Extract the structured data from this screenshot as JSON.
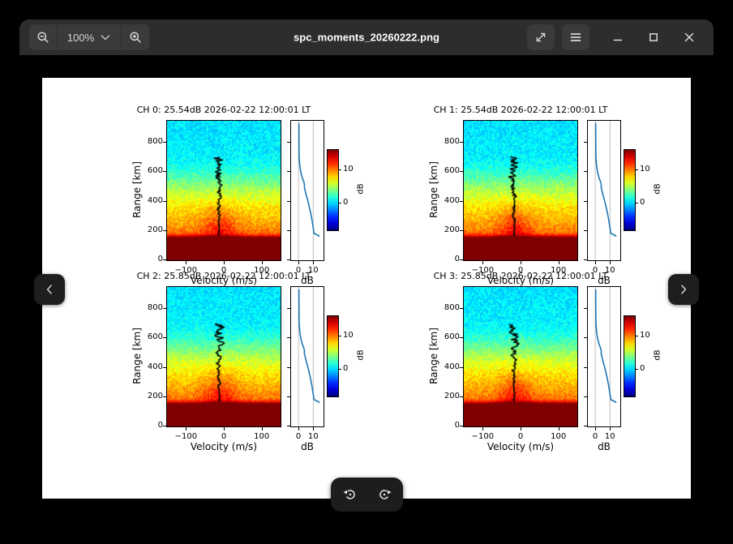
{
  "window": {
    "title": "spc_moments_20260222.png",
    "headerbar": {
      "zoom_level": "100%",
      "zoom_out_icon": "zoom-out-icon",
      "zoom_in_icon": "zoom-in-icon",
      "zoom_menu_chevron": "chevron-down-icon",
      "fullscreen_icon": "fullscreen-icon",
      "menu_icon": "hamburger-menu-icon",
      "minimize_icon": "minimize-icon",
      "maximize_icon": "maximize-icon",
      "close_icon": "close-icon"
    },
    "nav": {
      "previous_icon": "chevron-left-icon",
      "next_icon": "chevron-right-icon"
    },
    "bottom_bar": {
      "rotate_ccw_icon": "rotate-counterclockwise-icon",
      "rotate_cw_icon": "rotate-clockwise-icon"
    },
    "colors": {
      "headerbar": "#2d2d2d",
      "button": "#3a3a3a",
      "window_bg": "#000000",
      "figure_bg": "#ffffff",
      "profile_line": "#1f77b4"
    }
  },
  "chart_data": {
    "type": "heatmap",
    "description": "2x2 grid of radar Doppler spectra (velocity vs range, power in dB, jet colormap) with black Doppler-velocity trace, side SNR-profile line plot and colorbar per channel",
    "panels": [
      {
        "channel": "CH 0",
        "snr_db": 25.54,
        "timestamp": "2026-02-22 12:00:01 LT",
        "title": "CH 0: 25.54dB 2026-02-22 12:00:01 LT"
      },
      {
        "channel": "CH 1",
        "snr_db": 25.54,
        "timestamp": "2026-02-22 12:00:01 LT",
        "title": "CH 1: 25.54dB 2026-02-22 12:00:01 LT"
      },
      {
        "channel": "CH 2",
        "snr_db": 25.85,
        "timestamp": "2026-02-22 12:00:01 LT",
        "title": "CH 2: 25.85dB 2026-02-22 12:00:01 LT"
      },
      {
        "channel": "CH 3",
        "snr_db": 25.85,
        "timestamp": "2026-02-22 12:00:01 LT",
        "title": "CH 3: 25.85dB 2026-02-22 12:00:01 LT"
      }
    ],
    "shared": {
      "xlabel": "Velocity (m/s)",
      "ylabel": "Range [km]",
      "xlim": [
        -150,
        150
      ],
      "ylim": [
        0,
        950
      ],
      "xticks": [
        -100,
        0,
        100
      ],
      "yticks": [
        0,
        200,
        400,
        600,
        800
      ],
      "colormap": "jet",
      "colorbar_label": "dB",
      "colorbar_ticks": [
        0,
        10
      ],
      "colorbar_range": [
        -8,
        16
      ],
      "grid": false,
      "background_profile_km_db": [
        [
          0,
          16.8
        ],
        [
          148,
          16.7
        ],
        [
          158,
          15.6
        ],
        [
          170,
          13.8
        ],
        [
          176,
          11.5
        ],
        [
          190,
          10.3
        ],
        [
          230,
          9.5
        ],
        [
          300,
          8.4
        ],
        [
          360,
          7.6
        ],
        [
          420,
          6.4
        ],
        [
          480,
          5.2
        ],
        [
          540,
          3.6
        ],
        [
          600,
          2.2
        ],
        [
          660,
          1.2
        ],
        [
          730,
          0.7
        ],
        [
          950,
          0.35
        ]
      ],
      "velocity_trace": "black Doppler velocity profile near -10 m/s from ~170 km to ~700 km, wiggle amplitude grows with altitude",
      "db_panel": {
        "xlabel": "dB",
        "xticks": [
          0,
          10
        ],
        "xlim": [
          -5,
          17
        ],
        "snr_profile_db_km": [
          [
            0.3,
            935
          ],
          [
            0.4,
            760
          ],
          [
            0.5,
            700
          ],
          [
            0.9,
            645
          ],
          [
            1.6,
            600
          ],
          [
            2.6,
            560
          ],
          [
            3.6,
            535
          ],
          [
            4.1,
            515
          ],
          [
            4.0,
            498
          ],
          [
            4.3,
            485
          ],
          [
            5.0,
            455
          ],
          [
            5.8,
            425
          ],
          [
            6.6,
            395
          ],
          [
            7.3,
            365
          ],
          [
            8.0,
            335
          ],
          [
            8.6,
            305
          ],
          [
            9.2,
            272
          ],
          [
            9.7,
            240
          ],
          [
            10.1,
            215
          ],
          [
            10.4,
            195
          ],
          [
            10.6,
            183
          ],
          [
            12.8,
            172
          ],
          [
            13.8,
            168
          ],
          [
            14.0,
            160
          ]
        ]
      }
    }
  }
}
